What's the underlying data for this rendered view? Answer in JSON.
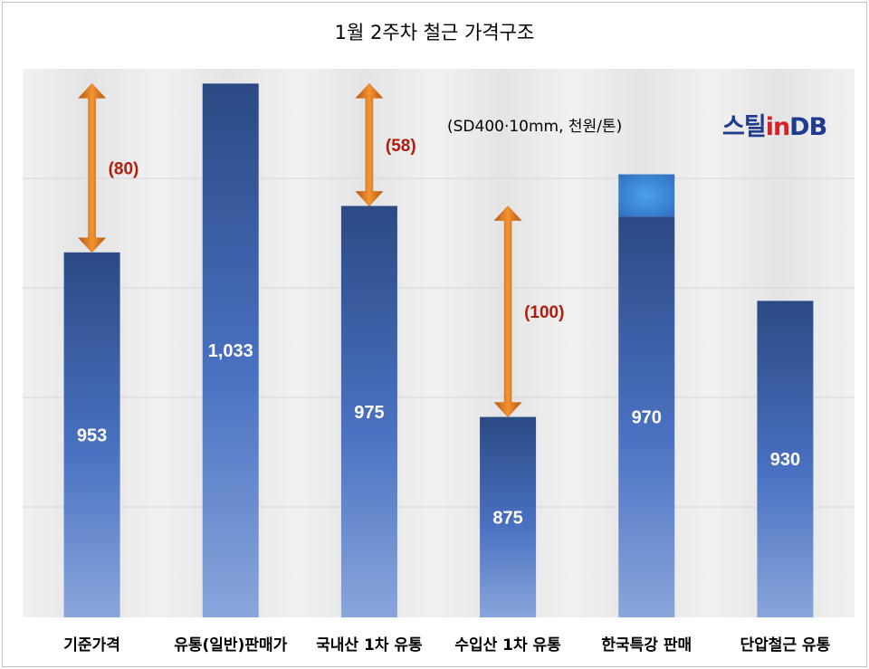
{
  "chart_data": {
    "type": "bar",
    "title": "1월 2주차 철근 가격구조",
    "subtitle": "(SD400·10mm, 천원/톤)",
    "categories": [
      "기준가격",
      "유통(일반)판매가",
      "국내산 1차 유통",
      "수입산 1차 유통",
      "한국특강 판매",
      "단압철근 유통"
    ],
    "values": [
      953,
      1033,
      975,
      875,
      970,
      930
    ],
    "value_labels": [
      "953",
      "1,033",
      "975",
      "875",
      "970",
      "930"
    ],
    "highlight_top": {
      "category": "한국특강 판매",
      "value": 990
    },
    "differences": [
      {
        "from": "기준가격",
        "to": "유통(일반)판매가",
        "label": "(80)",
        "value": 80
      },
      {
        "from": "국내산 1차 유통",
        "to": "유통(일반)판매가",
        "label": "(58)",
        "value": 58
      },
      {
        "from": "수입산 1차 유통",
        "to": "국내산 1차 유통",
        "label": "(100)",
        "value": 100
      }
    ],
    "ylim": [
      780,
      1040
    ],
    "grid": true,
    "xlabel": "",
    "ylabel": ""
  },
  "logo": {
    "part1": "스틸",
    "part2": "in",
    "part3": "DB"
  },
  "colors": {
    "bar_top": "#2b4a84",
    "bar_bottom": "#89a6db",
    "highlight": "#3b8ad8",
    "arrow": "#e67413",
    "diff_label": "#b01c0e",
    "value_label": "#ffffff"
  }
}
